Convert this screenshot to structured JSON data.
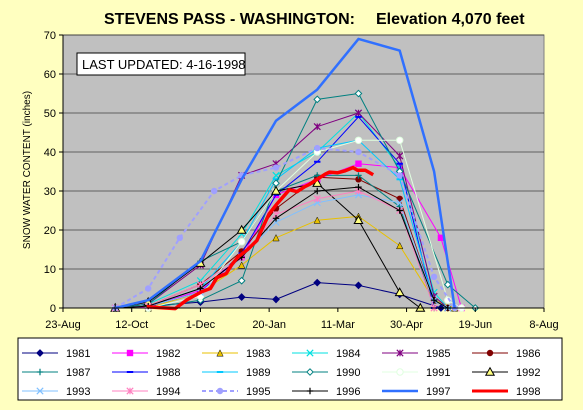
{
  "chart_data": {
    "type": "line",
    "title": "STEVENS PASS - WASHINGTON:",
    "subtitle": "Elevation 4,070 feet",
    "annotation": "LAST UPDATED: 4-16-1998",
    "xlabel": "",
    "ylabel": "SNOW WATER CONTENT (inches)",
    "ylim": [
      0,
      70
    ],
    "yticks": [
      0,
      10,
      20,
      30,
      40,
      50,
      60,
      70
    ],
    "xlim": [
      0,
      350
    ],
    "xticks": [
      {
        "day": 0,
        "label": "23-Aug"
      },
      {
        "day": 50,
        "label": "12-Oct"
      },
      {
        "day": 100,
        "label": "1-Dec"
      },
      {
        "day": 150,
        "label": "20-Jan"
      },
      {
        "day": 200,
        "label": "11-Mar"
      },
      {
        "day": 250,
        "label": "30-Apr"
      },
      {
        "day": 300,
        "label": "19-Jun"
      },
      {
        "day": 350,
        "label": "8-Aug"
      }
    ],
    "plot_background": "#c0c0c0",
    "grid": "horizontal",
    "legend_position": "bottom",
    "series": [
      {
        "name": "1981",
        "color": "#000080",
        "marker": "diamond",
        "width": 1,
        "points": [
          [
            38,
            0
          ],
          [
            62,
            0.5
          ],
          [
            100,
            1.5
          ],
          [
            130,
            2.8
          ],
          [
            155,
            2.2
          ],
          [
            185,
            6.5
          ],
          [
            215,
            5.8
          ],
          [
            245,
            3.5
          ],
          [
            275,
            0
          ]
        ]
      },
      {
        "name": "1982",
        "color": "#ff00ff",
        "marker": "square",
        "width": 1,
        "points": [
          [
            38,
            0
          ],
          [
            62,
            0.3
          ],
          [
            100,
            4.5
          ],
          [
            130,
            13
          ],
          [
            155,
            29
          ],
          [
            185,
            33
          ],
          [
            215,
            37
          ],
          [
            245,
            36
          ],
          [
            275,
            18
          ],
          [
            290,
            0
          ]
        ]
      },
      {
        "name": "1983",
        "color": "#e8c000",
        "marker": "triangle",
        "width": 1,
        "points": [
          [
            38,
            0
          ],
          [
            62,
            0
          ],
          [
            100,
            4
          ],
          [
            130,
            11
          ],
          [
            155,
            18
          ],
          [
            185,
            22.5
          ],
          [
            215,
            23.5
          ],
          [
            245,
            16
          ],
          [
            270,
            2
          ],
          [
            285,
            0
          ]
        ]
      },
      {
        "name": "1984",
        "color": "#00e0e0",
        "marker": "x",
        "width": 1,
        "points": [
          [
            38,
            0
          ],
          [
            62,
            1
          ],
          [
            100,
            7
          ],
          [
            130,
            19
          ],
          [
            155,
            34
          ],
          [
            185,
            40
          ],
          [
            215,
            50
          ],
          [
            245,
            36
          ],
          [
            270,
            4
          ],
          [
            280,
            0
          ]
        ]
      },
      {
        "name": "1985",
        "color": "#800080",
        "marker": "star",
        "width": 1,
        "points": [
          [
            38,
            0
          ],
          [
            62,
            1
          ],
          [
            100,
            11
          ],
          [
            130,
            34
          ],
          [
            155,
            37
          ],
          [
            185,
            46.5
          ],
          [
            215,
            50
          ],
          [
            245,
            39
          ],
          [
            270,
            3
          ],
          [
            280,
            0
          ]
        ]
      },
      {
        "name": "1986",
        "color": "#800000",
        "marker": "circle",
        "width": 1,
        "points": [
          [
            38,
            0
          ],
          [
            62,
            0.5
          ],
          [
            100,
            6
          ],
          [
            130,
            14.5
          ],
          [
            155,
            25.5
          ],
          [
            185,
            33.5
          ],
          [
            215,
            33
          ],
          [
            245,
            28
          ],
          [
            270,
            2
          ],
          [
            280,
            0
          ]
        ]
      },
      {
        "name": "1987",
        "color": "#008080",
        "marker": "plus",
        "width": 1,
        "points": [
          [
            38,
            0
          ],
          [
            62,
            1
          ],
          [
            100,
            12
          ],
          [
            130,
            17
          ],
          [
            155,
            30
          ],
          [
            185,
            34
          ],
          [
            215,
            34
          ],
          [
            245,
            26
          ],
          [
            270,
            0
          ]
        ]
      },
      {
        "name": "1988",
        "color": "#0000ff",
        "marker": "dash",
        "width": 1,
        "points": [
          [
            38,
            0
          ],
          [
            62,
            0.5
          ],
          [
            100,
            4
          ],
          [
            130,
            14
          ],
          [
            155,
            29
          ],
          [
            185,
            37.5
          ],
          [
            215,
            49
          ],
          [
            245,
            37
          ],
          [
            270,
            0
          ]
        ]
      },
      {
        "name": "1989",
        "color": "#00c8ff",
        "marker": "dash",
        "width": 1,
        "points": [
          [
            38,
            0
          ],
          [
            62,
            0.5
          ],
          [
            100,
            5
          ],
          [
            130,
            17
          ],
          [
            155,
            33
          ],
          [
            185,
            41
          ],
          [
            215,
            43
          ],
          [
            245,
            33
          ],
          [
            270,
            2
          ],
          [
            280,
            0
          ]
        ]
      },
      {
        "name": "1990",
        "color": "#008080",
        "marker": "diamond-open",
        "width": 1,
        "points": [
          [
            38,
            0
          ],
          [
            62,
            0
          ],
          [
            100,
            2
          ],
          [
            130,
            7
          ],
          [
            155,
            32
          ],
          [
            185,
            53.5
          ],
          [
            215,
            55
          ],
          [
            245,
            35
          ],
          [
            280,
            6
          ],
          [
            300,
            0
          ]
        ]
      },
      {
        "name": "1991",
        "color": "#e0ffe0",
        "marker": "circle-open",
        "width": 1,
        "points": [
          [
            38,
            0
          ],
          [
            62,
            0
          ],
          [
            100,
            3
          ],
          [
            130,
            17
          ],
          [
            155,
            30
          ],
          [
            185,
            40
          ],
          [
            215,
            43
          ],
          [
            245,
            43
          ],
          [
            280,
            2
          ],
          [
            290,
            0
          ]
        ]
      },
      {
        "name": "1992",
        "color": "#000000",
        "marker": "triangle-open",
        "width": 1,
        "points": [
          [
            38,
            0
          ],
          [
            62,
            1.5
          ],
          [
            100,
            11.5
          ],
          [
            130,
            20
          ],
          [
            155,
            30
          ],
          [
            185,
            32
          ],
          [
            215,
            22.5
          ],
          [
            245,
            4
          ],
          [
            260,
            0
          ]
        ]
      },
      {
        "name": "1993",
        "color": "#80c0ff",
        "marker": "x",
        "width": 1,
        "points": [
          [
            38,
            0
          ],
          [
            62,
            0.5
          ],
          [
            100,
            4
          ],
          [
            130,
            13
          ],
          [
            155,
            22
          ],
          [
            185,
            27
          ],
          [
            215,
            29
          ],
          [
            245,
            27
          ],
          [
            270,
            2
          ],
          [
            280,
            0
          ]
        ]
      },
      {
        "name": "1994",
        "color": "#ff80c0",
        "marker": "star",
        "width": 1,
        "points": [
          [
            38,
            0
          ],
          [
            62,
            0.5
          ],
          [
            100,
            6
          ],
          [
            130,
            13
          ],
          [
            155,
            24
          ],
          [
            185,
            28
          ],
          [
            215,
            30
          ],
          [
            245,
            25
          ],
          [
            270,
            0
          ]
        ]
      },
      {
        "name": "1995",
        "color": "#a0a0ff",
        "marker": "circle",
        "width": 2,
        "dash": true,
        "points": [
          [
            38,
            0
          ],
          [
            62,
            5
          ],
          [
            85,
            18
          ],
          [
            110,
            30
          ],
          [
            130,
            34
          ],
          [
            155,
            36
          ],
          [
            185,
            41
          ],
          [
            215,
            40
          ],
          [
            245,
            34
          ],
          [
            270,
            8
          ],
          [
            285,
            0
          ]
        ]
      },
      {
        "name": "1996",
        "color": "#000000",
        "marker": "plus",
        "width": 1,
        "points": [
          [
            38,
            0
          ],
          [
            62,
            0.5
          ],
          [
            100,
            5
          ],
          [
            130,
            13
          ],
          [
            155,
            23
          ],
          [
            185,
            30
          ],
          [
            215,
            31
          ],
          [
            245,
            25
          ],
          [
            270,
            2
          ],
          [
            280,
            0
          ]
        ]
      },
      {
        "name": "1997",
        "color": "#3070ff",
        "marker": "none",
        "width": 2.5,
        "points": [
          [
            38,
            0
          ],
          [
            62,
            2
          ],
          [
            100,
            12
          ],
          [
            130,
            33
          ],
          [
            155,
            48
          ],
          [
            185,
            56
          ],
          [
            215,
            69
          ],
          [
            245,
            66
          ],
          [
            270,
            35
          ],
          [
            285,
            0
          ]
        ]
      },
      {
        "name": "1998",
        "color": "#ff0000",
        "marker": "none",
        "width": 3.5,
        "points": [
          [
            62,
            0
          ],
          [
            82,
            0
          ],
          [
            90,
            2
          ],
          [
            100,
            4.5
          ],
          [
            108,
            5
          ],
          [
            112,
            7.5
          ],
          [
            118,
            9
          ],
          [
            124,
            11
          ],
          [
            128,
            13.5
          ],
          [
            134,
            15
          ],
          [
            140,
            17
          ],
          [
            145,
            20
          ],
          [
            150,
            24
          ],
          [
            155,
            27
          ],
          [
            160,
            28
          ],
          [
            165,
            30
          ],
          [
            170,
            30
          ],
          [
            175,
            31
          ],
          [
            180,
            32
          ],
          [
            185,
            33
          ],
          [
            190,
            34
          ],
          [
            195,
            35
          ],
          [
            200,
            34.5
          ],
          [
            205,
            35.5
          ],
          [
            210,
            36
          ],
          [
            215,
            35
          ],
          [
            220,
            35.5
          ],
          [
            225,
            34
          ]
        ]
      }
    ]
  }
}
